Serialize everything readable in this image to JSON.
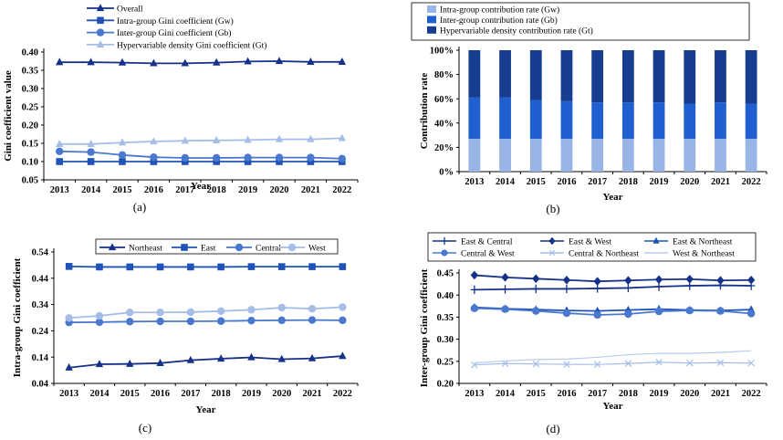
{
  "colors": {
    "dark": "#15318a",
    "mid": "#1f53b8",
    "medium": "#4a78cf",
    "light": "#a6bde8",
    "lighter": "#b9cbed",
    "bar_light": "#98b5e6",
    "bar_mid": "#1f5fd0",
    "bar_dark": "#163d8f"
  },
  "chart_data": [
    {
      "id": "a",
      "type": "line",
      "panel_label": "(a)",
      "xlabel": "Year",
      "ylabel": "Gini coefficient value",
      "x": [
        "2013",
        "2014",
        "2015",
        "2016",
        "2017",
        "2018",
        "2019",
        "2020",
        "2021",
        "2022"
      ],
      "ylim": [
        0.05,
        0.4
      ],
      "yticks": [
        "0.05",
        "0.10",
        "0.15",
        "0.20",
        "0.25",
        "0.30",
        "0.35",
        "0.40"
      ],
      "legend_position": "top-left",
      "series": [
        {
          "name": "Overall",
          "marker": "triangle",
          "color": "dark",
          "values": [
            0.372,
            0.372,
            0.371,
            0.369,
            0.369,
            0.371,
            0.374,
            0.375,
            0.373,
            0.373
          ]
        },
        {
          "name": "Intra-group Gini coefficient (Gw)",
          "marker": "square",
          "color": "mid",
          "values": [
            0.1,
            0.1,
            0.1,
            0.1,
            0.1,
            0.1,
            0.1,
            0.1,
            0.1,
            0.1
          ]
        },
        {
          "name": "Inter-group Gini coefficient (Gb)",
          "marker": "circle",
          "color": "medium",
          "values": [
            0.128,
            0.126,
            0.118,
            0.112,
            0.11,
            0.11,
            0.111,
            0.111,
            0.111,
            0.108
          ]
        },
        {
          "name": "Hypervariable density Gini coefficient (Gt)",
          "marker": "triangle",
          "color": "light",
          "values": [
            0.148,
            0.148,
            0.152,
            0.155,
            0.157,
            0.158,
            0.159,
            0.161,
            0.161,
            0.164
          ]
        }
      ]
    },
    {
      "id": "b",
      "type": "bar",
      "stacked": true,
      "panel_label": "(b)",
      "xlabel": "Year",
      "ylabel": "Contribution rate",
      "categories": [
        "2013",
        "2014",
        "2015",
        "2016",
        "2017",
        "2018",
        "2019",
        "2020",
        "2021",
        "2022"
      ],
      "ylim": [
        0,
        100
      ],
      "yticks": [
        "0%",
        "20%",
        "40%",
        "60%",
        "80%",
        "100%"
      ],
      "legend_position": "top",
      "series": [
        {
          "name": "Intra-group contribution rate (Gw)",
          "color": "bar_light",
          "values": [
            27,
            27,
            27,
            27,
            27,
            27,
            27,
            27,
            27,
            27
          ]
        },
        {
          "name": "Inter-group contribution rate (Gb)",
          "color": "bar_mid",
          "values": [
            34,
            34,
            32,
            31,
            30,
            30,
            30,
            29,
            30,
            29
          ]
        },
        {
          "name": "Hypervariable density contribution rate (Gt)",
          "color": "bar_dark",
          "values": [
            39,
            39,
            41,
            42,
            43,
            43,
            43,
            44,
            43,
            44
          ]
        }
      ]
    },
    {
      "id": "c",
      "type": "line",
      "panel_label": "(c)",
      "xlabel": "Year",
      "ylabel": "Intra-group Gini coefficient",
      "x": [
        "2013",
        "2014",
        "2015",
        "2016",
        "2017",
        "2018",
        "2019",
        "2020",
        "2021",
        "2022"
      ],
      "ylim": [
        0.04,
        0.54
      ],
      "yticks": [
        "0.04",
        "0.14",
        "0.24",
        "0.34",
        "0.44",
        "0.54"
      ],
      "legend_position": "top",
      "series": [
        {
          "name": "Northeast",
          "marker": "triangle",
          "color": "dark",
          "values": [
            0.1,
            0.113,
            0.114,
            0.117,
            0.128,
            0.134,
            0.139,
            0.132,
            0.135,
            0.144
          ]
        },
        {
          "name": "East",
          "marker": "square",
          "color": "mid",
          "values": [
            0.485,
            0.483,
            0.483,
            0.483,
            0.483,
            0.483,
            0.484,
            0.484,
            0.484,
            0.484
          ]
        },
        {
          "name": "Central",
          "marker": "circle",
          "color": "medium",
          "values": [
            0.272,
            0.273,
            0.275,
            0.276,
            0.276,
            0.277,
            0.279,
            0.28,
            0.281,
            0.28
          ]
        },
        {
          "name": "West",
          "marker": "circle",
          "color": "light",
          "values": [
            0.289,
            0.297,
            0.31,
            0.31,
            0.311,
            0.315,
            0.32,
            0.328,
            0.324,
            0.33
          ]
        }
      ]
    },
    {
      "id": "d",
      "type": "line",
      "panel_label": "(d)",
      "xlabel": "Year",
      "ylabel": "Inter-group Gini coefficient",
      "x": [
        "2013",
        "2014",
        "2015",
        "2016",
        "2017",
        "2018",
        "2019",
        "2020",
        "2021",
        "2022"
      ],
      "ylim": [
        0.2,
        0.45
      ],
      "yticks": [
        "0.20",
        "0.25",
        "0.30",
        "0.35",
        "0.40",
        "0.45"
      ],
      "legend_position": "top",
      "series": [
        {
          "name": "East & Central",
          "marker": "plus",
          "color": "dark",
          "values": [
            0.412,
            0.413,
            0.414,
            0.414,
            0.415,
            0.416,
            0.419,
            0.421,
            0.422,
            0.421
          ]
        },
        {
          "name": "East & West",
          "marker": "diamond",
          "color": "dark",
          "values": [
            0.445,
            0.44,
            0.437,
            0.434,
            0.431,
            0.433,
            0.435,
            0.436,
            0.433,
            0.434
          ]
        },
        {
          "name": "East & Northeast",
          "marker": "triangle",
          "color": "mid",
          "values": [
            0.372,
            0.369,
            0.367,
            0.365,
            0.364,
            0.366,
            0.368,
            0.366,
            0.365,
            0.367
          ]
        },
        {
          "name": "Central & West",
          "marker": "circle",
          "color": "medium",
          "values": [
            0.37,
            0.368,
            0.364,
            0.359,
            0.355,
            0.357,
            0.363,
            0.365,
            0.364,
            0.358
          ]
        },
        {
          "name": "Central & Northeast",
          "marker": "x",
          "color": "light",
          "values": [
            0.242,
            0.245,
            0.244,
            0.243,
            0.243,
            0.245,
            0.248,
            0.246,
            0.247,
            0.246
          ]
        },
        {
          "name": "West & Northeast",
          "marker": "none",
          "color": "lighter",
          "values": [
            0.246,
            0.251,
            0.254,
            0.255,
            0.259,
            0.265,
            0.268,
            0.268,
            0.27,
            0.274
          ]
        }
      ]
    }
  ]
}
